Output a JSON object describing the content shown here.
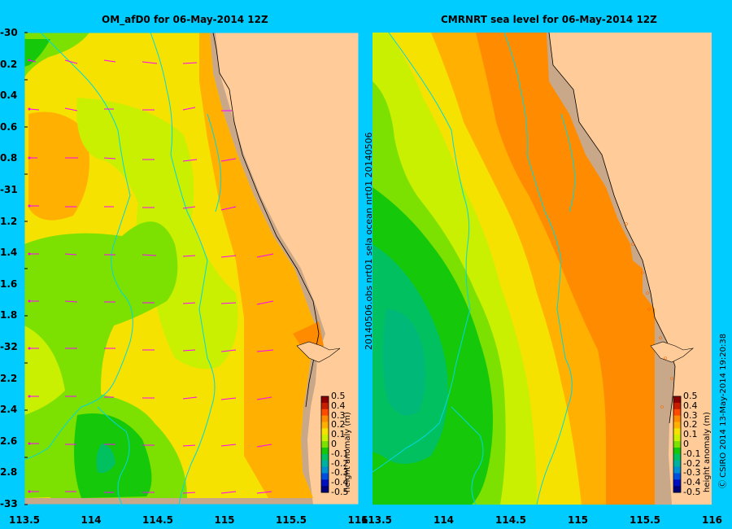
{
  "left_panel": {
    "title": "OM_afD0 for 06-May-2014 12Z"
  },
  "right_panel": {
    "title": "CMRNRT sea level  for 06-May-2014 12Z"
  },
  "lat_ticks": [
    "-30",
    "0.2",
    "0.4",
    "0.6",
    "0.8",
    "-31",
    "1.2",
    "1.4",
    "1.6",
    "1.8",
    "-32",
    "2.2",
    "2.4",
    "2.6",
    "2.8",
    "-33"
  ],
  "lon_ticks_left": [
    "113.5",
    "114",
    "114.5",
    "115",
    "115.5",
    "116"
  ],
  "lon_ticks_right": [
    "113.5",
    "114",
    "114.5",
    "115",
    "115.5",
    "116"
  ],
  "vertical_caption": "20140506.obs  nrt01  sela      ocean  nrt01  20140506",
  "colorbar": {
    "ticks": [
      "0.5",
      "0.4",
      "0.3",
      "0.2",
      "0.1",
      "0",
      "-0.1",
      "-0.2",
      "-0.3",
      "-0.4",
      "-0.5"
    ],
    "label": "height anomaly (m)",
    "colors": [
      "#8b0000",
      "#c81e00",
      "#ff4a00",
      "#ff8c00",
      "#ffb000",
      "#f5e200",
      "#c8f000",
      "#7ce000",
      "#16c80a",
      "#00c060",
      "#00b0a0",
      "#0090d0",
      "#0050e0",
      "#0010c0",
      "#00007a"
    ]
  },
  "credit": "Ⓒ CSIRO 2014   13-May-2014 19:20:38",
  "colors": {
    "background": "#00ccff",
    "land": "#ffcc99",
    "coast": "#c8a888",
    "vector": "#ff00ff",
    "contour": "#00d8e0"
  }
}
